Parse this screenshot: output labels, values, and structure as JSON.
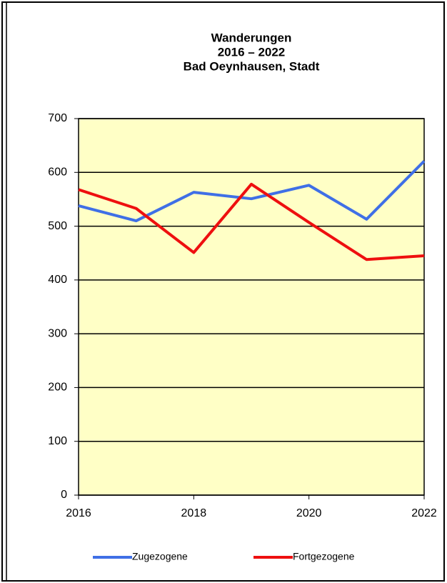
{
  "chart_data": {
    "type": "line",
    "title": [
      "Wanderungen",
      "2016 – 2022",
      "Bad Oeynhausen, Stadt"
    ],
    "x": [
      2016,
      2017,
      2018,
      2019,
      2020,
      2021,
      2022
    ],
    "series": [
      {
        "name": "Zugezogene",
        "color": "#3f6fe6",
        "values": [
          538,
          510,
          563,
          551,
          576,
          513,
          621
        ]
      },
      {
        "name": "Fortgezogene",
        "color": "#ee0f0f",
        "values": [
          568,
          533,
          451,
          578,
          507,
          438,
          445
        ]
      }
    ],
    "xlim": [
      2016,
      2022
    ],
    "xticks": [
      2016,
      2018,
      2020,
      2022
    ],
    "ylim": [
      0,
      700
    ],
    "yticks": [
      0,
      100,
      200,
      300,
      400,
      500,
      600,
      700
    ],
    "grid": true,
    "legend": "bottom",
    "background": "#ffffc6"
  }
}
